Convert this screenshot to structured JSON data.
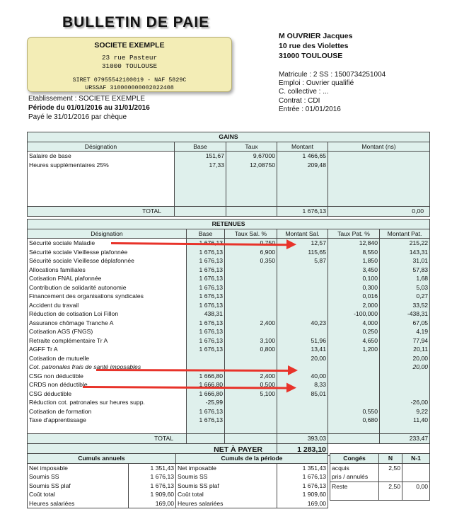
{
  "title": "BULLETIN DE PAIE",
  "company": {
    "name": "SOCIETE EXEMPLE",
    "street": "23 rue Pasteur",
    "city": "31000 TOULOUSE",
    "siret": "SIRET 07955542100019 - NAF 5829C",
    "urssaf": "URSSAF 310000000002022408"
  },
  "employee": {
    "name": "M OUVRIER Jacques",
    "street": "10 rue des Violettes",
    "city": "31000 TOULOUSE",
    "matricule": "Matricule : 2  SS : 1500734251004",
    "emploi": "Emploi : Ouvrier qualifié",
    "collective": "C. collective : ...",
    "contrat": "Contrat : CDI",
    "entree": "Entrée : 01/01/2016"
  },
  "etablissement": "Etablissement : SOCIETE EXEMPLE",
  "periode": "Période du 01/01/2016 au 31/01/2016",
  "paye": "Payé le 31/01/2016 par chèque",
  "gains": {
    "title": "GAINS",
    "headers": [
      "Désignation",
      "Base",
      "Taux",
      "Montant",
      "Montant (ns)"
    ],
    "rows": [
      [
        "Salaire de base",
        "151,67",
        "9,67000",
        "1 466,65",
        ""
      ],
      [
        "Heures supplémentaires 25%",
        "17,33",
        "12,08750",
        "209,48",
        ""
      ]
    ],
    "total_label": "TOTAL",
    "total_montant": "1 676,13",
    "total_ns": "0,00"
  },
  "retenues": {
    "title": "RETENUES",
    "headers": [
      "Désignation",
      "Base",
      "Taux Sal. %",
      "Montant Sal.",
      "Taux Pat. %",
      "Montant Pat."
    ],
    "rows": [
      [
        "Sécurité sociale Maladie",
        "1 676,13",
        "0,750",
        "12,57",
        "12,840",
        "215,22"
      ],
      [
        "Sécurité sociale Vieillesse plafonnée",
        "1 676,13",
        "6,900",
        "115,65",
        "8,550",
        "143,31"
      ],
      [
        "Sécurité sociale Vieillesse déplafonnée",
        "1 676,13",
        "0,350",
        "5,87",
        "1,850",
        "31,01"
      ],
      [
        "Allocations familiales",
        "1 676,13",
        "",
        "",
        "3,450",
        "57,83"
      ],
      [
        "Cotisation FNAL plafonnée",
        "1 676,13",
        "",
        "",
        "0,100",
        "1,68"
      ],
      [
        "Contribution de solidarité autonomie",
        "1 676,13",
        "",
        "",
        "0,300",
        "5,03"
      ],
      [
        "Financement des organisations syndicales",
        "1 676,13",
        "",
        "",
        "0,016",
        "0,27"
      ],
      [
        "Accident du travail",
        "1 676,13",
        "",
        "",
        "2,000",
        "33,52"
      ],
      [
        "Réduction de cotisation Loi Fillon",
        "438,31",
        "",
        "",
        "-100,000",
        "-438,31"
      ],
      [
        "Assurance chômage Tranche A",
        "1 676,13",
        "2,400",
        "40,23",
        "4,000",
        "67,05"
      ],
      [
        "Cotisation AGS (FNGS)",
        "1 676,13",
        "",
        "",
        "0,250",
        "4,19"
      ],
      [
        "Retraite complémentaire Tr A",
        "1 676,13",
        "3,100",
        "51,96",
        "4,650",
        "77,94"
      ],
      [
        "AGFF Tr A",
        "1 676,13",
        "0,800",
        "13,41",
        "1,200",
        "20,11"
      ],
      [
        "Cotisation de mutuelle",
        "",
        "",
        "20,00",
        "",
        "20,00"
      ],
      [
        "Cot. patronales frais de santé imposables",
        "",
        "",
        "",
        "",
        "20,00"
      ],
      [
        "CSG non déductible",
        "1 666,80",
        "2,400",
        "40,00",
        "",
        ""
      ],
      [
        "CRDS non déductible",
        "1 666,80",
        "0,500",
        "8,33",
        "",
        ""
      ],
      [
        "CSG déductible",
        "1 666,80",
        "5,100",
        "85,01",
        "",
        ""
      ],
      [
        "Réduction cot. patronales sur heures supp.",
        "-25,99",
        "",
        "",
        "",
        "-26,00"
      ],
      [
        "Cotisation de formation",
        "1 676,13",
        "",
        "",
        "0,550",
        "9,22"
      ],
      [
        "Taxe d'apprentissage",
        "1 676,13",
        "",
        "",
        "0,680",
        "11,40"
      ]
    ],
    "total_label": "TOTAL",
    "total_sal": "393,03",
    "total_pat": "233,47",
    "net_label": "NET À PAYER",
    "net_value": "1 283,10"
  },
  "cumuls": {
    "annuels_title": "Cumuls annuels",
    "periode_title": "Cumuls de la période",
    "rows": [
      [
        "Net imposable",
        "1 351,43",
        "Net imposable",
        "1 351,43"
      ],
      [
        "Soumis SS",
        "1 676,13",
        "Soumis SS",
        "1 676,13"
      ],
      [
        "Soumis SS plaf",
        "1 676,13",
        "Soumis SS plaf",
        "1 676,13"
      ],
      [
        "Coût total",
        "1 909,60",
        "Coût total",
        "1 909,60"
      ],
      [
        "Heures salariées",
        "169,00",
        "Heures salariées",
        "169,00"
      ]
    ]
  },
  "conges": {
    "title": "Congés",
    "col_n": "N",
    "col_n1": "N-1",
    "acquis": "acquis",
    "pris": "pris / annulés",
    "reste": "Reste",
    "acquis_n": "2,50",
    "reste_n": "2,50",
    "reste_n1": "0,00"
  }
}
